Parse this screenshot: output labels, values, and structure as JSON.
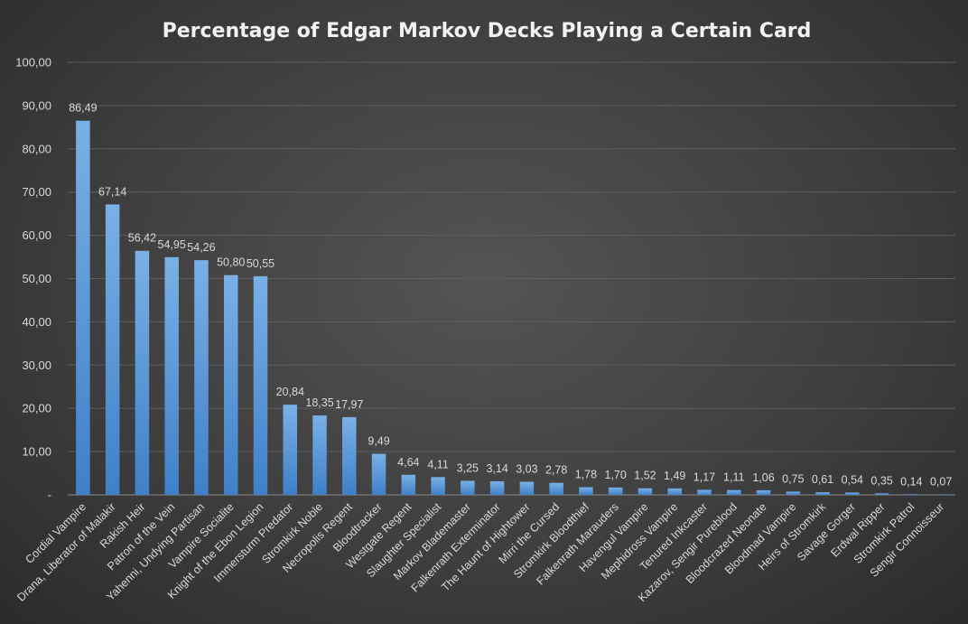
{
  "chart_data": {
    "type": "bar",
    "title": "Percentage of Edgar Markov Decks Playing a Certain Card",
    "xlabel": "",
    "ylabel": "",
    "ylim": [
      0,
      100
    ],
    "y_ticks": [
      "-",
      "10,00",
      "20,00",
      "30,00",
      "40,00",
      "50,00",
      "60,00",
      "70,00",
      "80,00",
      "90,00",
      "100,00"
    ],
    "grid": true,
    "legend": "none",
    "categories": [
      "Cordial Vampire",
      "Drana, Liberator of Malakir",
      "Rakish Heir",
      "Patron of the Vein",
      "Yahenni, Undying Partisan",
      "Vampire Socialite",
      "Knight of the Ebon Legion",
      "Immersturm Predator",
      "Stromkirk Noble",
      "Necropolis Regent",
      "Bloodtracker",
      "Westgate Regent",
      "Slaughter Specialist",
      "Markov Blademaster",
      "Falkenrath Exterminator",
      "The Haunt of Hightower",
      "Mirri the Cursed",
      "Stromkirk Bloodthief",
      "Falkenrath Marauders",
      "Havengul Vampire",
      "Mephidross Vampire",
      "Tenured Inkcaster",
      "Kazarov, Sengir Pureblood",
      "Bloodcrazed Neonate",
      "Bloodmad Vampire",
      "Heirs of Stromkirk",
      "Savage Gorger",
      "Erdwal Ripper",
      "Stromkirk Patrol",
      "Sengir Connoisseur"
    ],
    "values": [
      86.49,
      67.14,
      56.42,
      54.95,
      54.26,
      50.8,
      50.55,
      20.84,
      18.35,
      17.97,
      9.49,
      4.64,
      4.11,
      3.25,
      3.14,
      3.03,
      2.78,
      1.78,
      1.7,
      1.52,
      1.49,
      1.17,
      1.11,
      1.06,
      0.75,
      0.61,
      0.54,
      0.35,
      0.14,
      0.07
    ],
    "data_labels": [
      "86,49",
      "67,14",
      "56,42",
      "54,95",
      "54,26",
      "50,80",
      "50,55",
      "20,84",
      "18,35",
      "17,97",
      "9,49",
      "4,64",
      "4,11",
      "3,25",
      "3,14",
      "3,03",
      "2,78",
      "1,78",
      "1,70",
      "1,52",
      "1,49",
      "1,17",
      "1,11",
      "1,06",
      "0,75",
      "0,61",
      "0,54",
      "0,35",
      "0,14",
      "0,07"
    ],
    "colors": {
      "bar_top": "#7ab0e6",
      "bar_bottom": "#3f80c8",
      "grid": "#5e5e5e",
      "text": "#d9d9d9",
      "title": "#f2f2f2"
    }
  }
}
